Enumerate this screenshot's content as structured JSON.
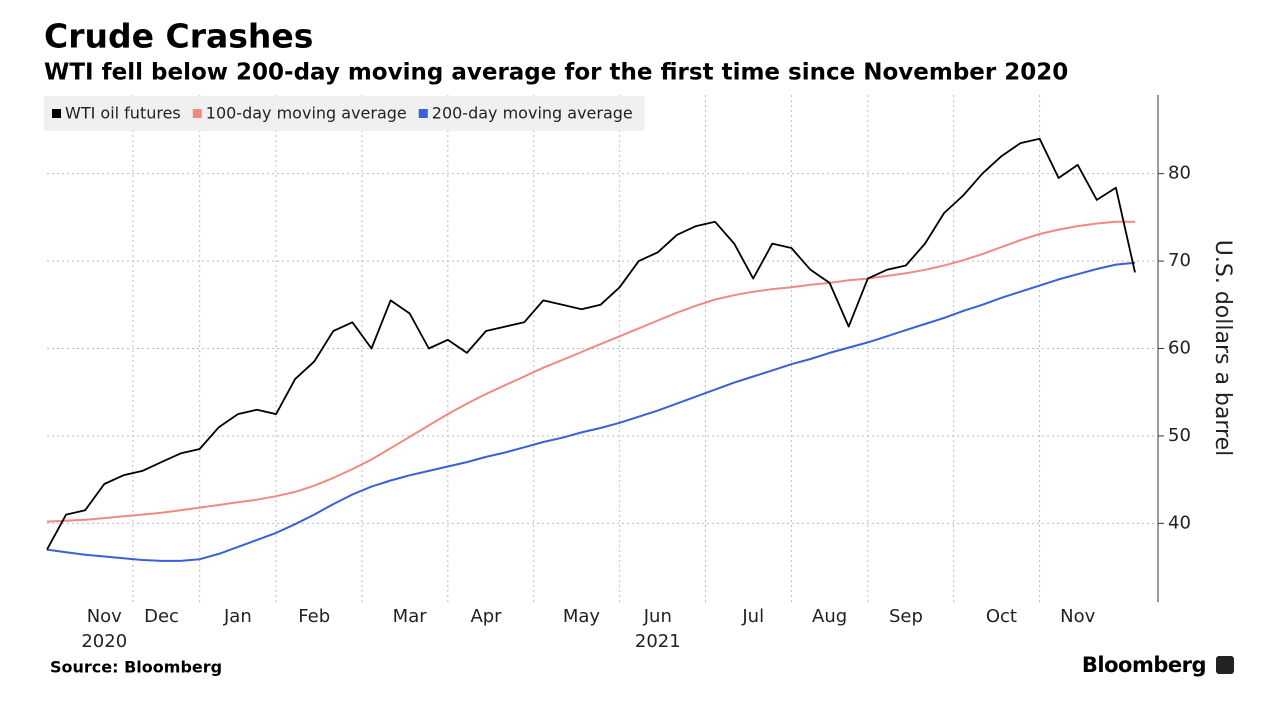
{
  "chart_data": {
    "type": "line",
    "title": "Crude Crashes",
    "subtitle": "WTI fell below 200-day moving average for the first time since November 2020",
    "ylabel": "U.S. dollars a barrel",
    "source": "Source: Bloomberg",
    "brand": "Bloomberg",
    "categories": [
      null,
      null,
      null,
      "Nov\n2020",
      null,
      null,
      "Dec",
      null,
      null,
      null,
      "Jan",
      null,
      null,
      null,
      "Feb",
      null,
      null,
      null,
      null,
      "Mar",
      null,
      null,
      null,
      "Apr",
      null,
      null,
      null,
      null,
      "May",
      null,
      null,
      null,
      "Jun\n2021",
      null,
      null,
      null,
      null,
      "Jul",
      null,
      null,
      null,
      "Aug",
      null,
      null,
      null,
      "Sep",
      null,
      null,
      null,
      null,
      "Oct",
      null,
      null,
      null,
      "Nov",
      null,
      null,
      null
    ],
    "series": [
      {
        "name": "WTI oil futures",
        "color": "#000000",
        "values": [
          37,
          41,
          41.5,
          44.5,
          45.5,
          46,
          47,
          48,
          48.5,
          51,
          52.5,
          53,
          52.5,
          56.5,
          58.5,
          62,
          63,
          60,
          65.5,
          64,
          60,
          61,
          59.5,
          62,
          62.5,
          63,
          65.5,
          65,
          64.5,
          65,
          67,
          70,
          71,
          73,
          74,
          74.5,
          72,
          68,
          72,
          71.5,
          69,
          67.5,
          62.5,
          68,
          69,
          69.5,
          72,
          75.5,
          77.5,
          80,
          82,
          83.5,
          84,
          79.5,
          81,
          77,
          78.4,
          68.7
        ]
      },
      {
        "name": "100-day moving average",
        "color": "#f08a80",
        "values": [
          40.2,
          40.3,
          40.4,
          40.6,
          40.8,
          41.0,
          41.2,
          41.5,
          41.8,
          42.1,
          42.4,
          42.7,
          43.1,
          43.6,
          44.3,
          45.2,
          46.2,
          47.3,
          48.6,
          49.9,
          51.2,
          52.5,
          53.7,
          54.8,
          55.8,
          56.8,
          57.8,
          58.7,
          59.6,
          60.5,
          61.4,
          62.3,
          63.2,
          64.1,
          64.9,
          65.6,
          66.1,
          66.5,
          66.8,
          67.0,
          67.3,
          67.5,
          67.8,
          68.0,
          68.3,
          68.6,
          69.0,
          69.5,
          70.1,
          70.8,
          71.6,
          72.4,
          73.1,
          73.6,
          74.0,
          74.3,
          74.5,
          74.5
        ]
      },
      {
        "name": "200-day moving average",
        "color": "#3a5fd6",
        "values": [
          37.0,
          36.7,
          36.4,
          36.2,
          36.0,
          35.8,
          35.7,
          35.7,
          35.9,
          36.5,
          37.3,
          38.1,
          38.9,
          39.9,
          41.0,
          42.2,
          43.3,
          44.2,
          44.9,
          45.5,
          46.0,
          46.5,
          47.0,
          47.6,
          48.1,
          48.7,
          49.3,
          49.8,
          50.4,
          50.9,
          51.5,
          52.2,
          52.9,
          53.7,
          54.5,
          55.3,
          56.1,
          56.8,
          57.5,
          58.2,
          58.8,
          59.5,
          60.1,
          60.7,
          61.4,
          62.1,
          62.8,
          63.5,
          64.3,
          65.0,
          65.8,
          66.5,
          67.2,
          67.9,
          68.5,
          69.1,
          69.6,
          69.8
        ]
      }
    ],
    "ylim": [
      31,
      89
    ],
    "yticks": [
      40,
      50,
      60,
      70,
      80
    ],
    "y_axis_side": "right",
    "grid": true,
    "legend": "top-left"
  }
}
